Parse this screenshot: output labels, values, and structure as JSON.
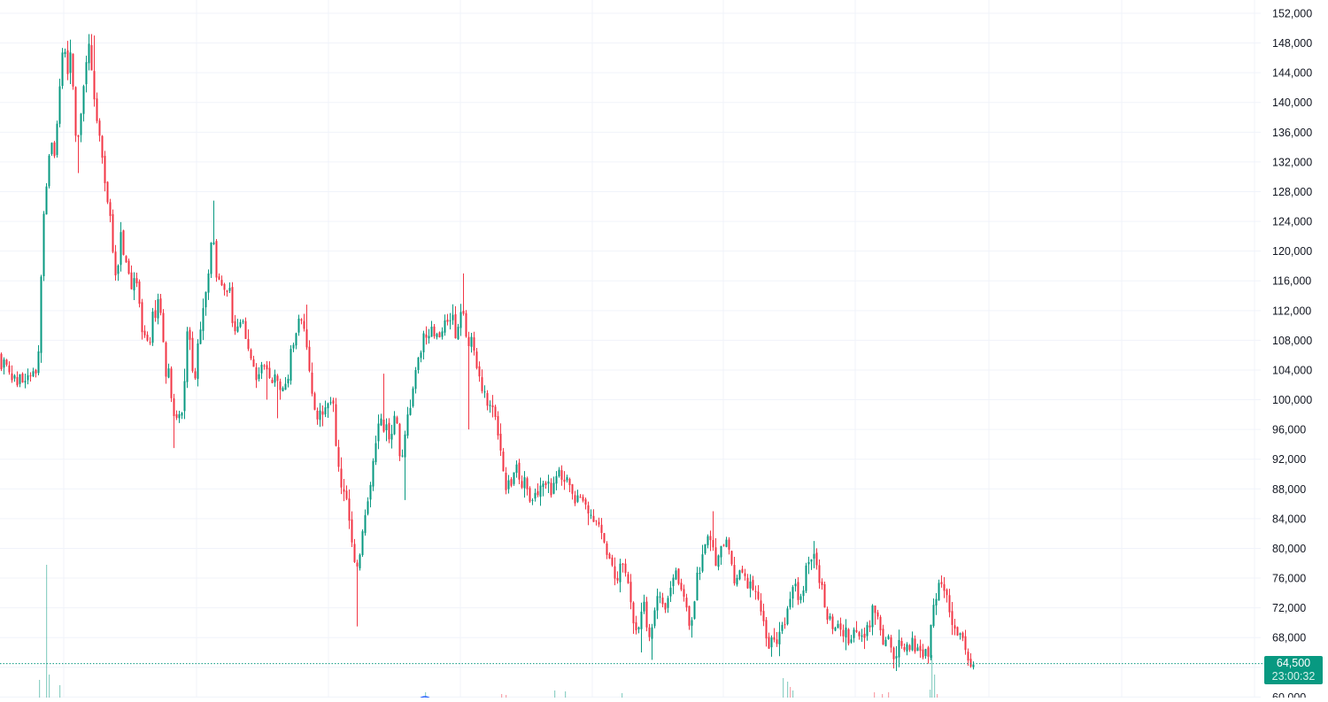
{
  "chart_data": {
    "type": "candlestick",
    "y_axis": {
      "position": "right",
      "ticks": [
        "152,000",
        "148,000",
        "144,000",
        "140,000",
        "136,000",
        "132,000",
        "128,000",
        "124,000",
        "120,000",
        "116,000",
        "112,000",
        "108,000",
        "104,000",
        "100,000",
        "96,000",
        "92,000",
        "88,000",
        "84,000",
        "80,000",
        "76,000",
        "72,000",
        "68,000",
        "64,000",
        "60,000"
      ],
      "ylim": [
        59800,
        153700
      ]
    },
    "grid": true,
    "colors": {
      "up": "#089981",
      "down": "#F23645",
      "grid": "#F0F3FA",
      "axis_text": "#131722"
    },
    "last_price": {
      "value": 64500,
      "label": "64,500",
      "countdown": "23:00:32"
    },
    "path_points": [
      [
        0,
        106000
      ],
      [
        3,
        104500
      ],
      [
        6,
        105200
      ],
      [
        9,
        103800
      ],
      [
        12,
        104400
      ],
      [
        15,
        102600
      ],
      [
        18,
        103600
      ],
      [
        21,
        102200
      ],
      [
        24,
        103100
      ],
      [
        27,
        102500
      ],
      [
        30,
        103400
      ],
      [
        33,
        102400
      ],
      [
        36,
        103200
      ],
      [
        39,
        104100
      ],
      [
        42,
        103400
      ],
      [
        45,
        108200
      ],
      [
        48,
        119500
      ],
      [
        51,
        127000
      ],
      [
        54,
        129000
      ],
      [
        57,
        134000
      ],
      [
        60,
        136000
      ],
      [
        63,
        131500
      ],
      [
        66,
        140500
      ],
      [
        69,
        143500
      ],
      [
        72,
        147500
      ],
      [
        75,
        146000
      ],
      [
        78,
        144000
      ],
      [
        81,
        147000
      ],
      [
        84,
        140000
      ],
      [
        87,
        132000
      ],
      [
        90,
        137000
      ],
      [
        93,
        139500
      ],
      [
        96,
        144000
      ],
      [
        99,
        146500
      ],
      [
        102,
        148500
      ],
      [
        105,
        142500
      ],
      [
        108,
        139500
      ],
      [
        111,
        137000
      ],
      [
        114,
        134000
      ],
      [
        117,
        133000
      ],
      [
        120,
        128500
      ],
      [
        123,
        126500
      ],
      [
        126,
        123000
      ],
      [
        129,
        119500
      ],
      [
        132,
        114500
      ],
      [
        135,
        119500
      ],
      [
        138,
        123500
      ],
      [
        141,
        117000
      ],
      [
        144,
        118500
      ],
      [
        147,
        116000
      ],
      [
        150,
        113500
      ],
      [
        153,
        117000
      ],
      [
        156,
        115000
      ],
      [
        159,
        111000
      ],
      [
        162,
        107500
      ],
      [
        165,
        110500
      ],
      [
        168,
        106000
      ],
      [
        171,
        109000
      ],
      [
        174,
        112000
      ],
      [
        177,
        110500
      ],
      [
        180,
        114000
      ],
      [
        183,
        109500
      ],
      [
        186,
        106000
      ],
      [
        189,
        101500
      ],
      [
        192,
        104500
      ],
      [
        195,
        98500
      ],
      [
        198,
        97000
      ],
      [
        201,
        99000
      ],
      [
        204,
        97500
      ],
      [
        207,
        99500
      ],
      [
        210,
        105000
      ],
      [
        213,
        111500
      ],
      [
        216,
        107500
      ],
      [
        219,
        101500
      ],
      [
        222,
        104500
      ],
      [
        225,
        108000
      ],
      [
        228,
        111000
      ],
      [
        231,
        112500
      ],
      [
        234,
        115000
      ],
      [
        237,
        117000
      ],
      [
        240,
        124000
      ],
      [
        243,
        119000
      ],
      [
        246,
        114500
      ],
      [
        249,
        117000
      ],
      [
        252,
        113500
      ],
      [
        255,
        115000
      ],
      [
        258,
        113000
      ],
      [
        261,
        115500
      ],
      [
        264,
        108500
      ],
      [
        267,
        110000
      ],
      [
        270,
        109000
      ],
      [
        273,
        111500
      ],
      [
        276,
        110000
      ],
      [
        279,
        108500
      ],
      [
        282,
        107000
      ],
      [
        285,
        103500
      ],
      [
        288,
        105000
      ],
      [
        291,
        102000
      ],
      [
        294,
        103500
      ],
      [
        297,
        105500
      ],
      [
        300,
        103800
      ],
      [
        303,
        104500
      ],
      [
        306,
        101200
      ],
      [
        309,
        104000
      ],
      [
        312,
        101800
      ],
      [
        315,
        103000
      ],
      [
        318,
        100500
      ],
      [
        321,
        102000
      ],
      [
        324,
        101200
      ],
      [
        327,
        104500
      ],
      [
        330,
        108000
      ],
      [
        333,
        107000
      ],
      [
        336,
        111000
      ],
      [
        339,
        112000
      ],
      [
        342,
        110500
      ],
      [
        345,
        108000
      ],
      [
        348,
        106000
      ],
      [
        351,
        102000
      ],
      [
        354,
        101000
      ],
      [
        357,
        98000
      ],
      [
        360,
        97000
      ],
      [
        363,
        99000
      ],
      [
        366,
        98000
      ],
      [
        369,
        99500
      ],
      [
        372,
        98500
      ],
      [
        375,
        100500
      ],
      [
        378,
        99500
      ],
      [
        381,
        91500
      ],
      [
        384,
        90000
      ],
      [
        387,
        86500
      ],
      [
        390,
        89000
      ],
      [
        393,
        86500
      ],
      [
        396,
        83500
      ],
      [
        399,
        80500
      ],
      [
        402,
        76500
      ],
      [
        405,
        78000
      ],
      [
        408,
        80500
      ],
      [
        411,
        83000
      ],
      [
        414,
        85500
      ],
      [
        417,
        87500
      ],
      [
        420,
        89000
      ],
      [
        423,
        93000
      ],
      [
        426,
        96000
      ],
      [
        429,
        98500
      ],
      [
        432,
        97500
      ],
      [
        435,
        95000
      ],
      [
        438,
        96500
      ],
      [
        441,
        94500
      ],
      [
        444,
        96500
      ],
      [
        447,
        97500
      ],
      [
        450,
        95500
      ],
      [
        453,
        91000
      ],
      [
        456,
        93500
      ],
      [
        459,
        96000
      ],
      [
        462,
        98500
      ],
      [
        465,
        99500
      ],
      [
        468,
        102000
      ],
      [
        471,
        104000
      ],
      [
        474,
        105500
      ],
      [
        477,
        107500
      ],
      [
        480,
        108500
      ],
      [
        483,
        107000
      ],
      [
        486,
        109000
      ],
      [
        489,
        110000
      ],
      [
        492,
        108000
      ],
      [
        495,
        109500
      ],
      [
        498,
        108500
      ],
      [
        501,
        110500
      ],
      [
        504,
        111000
      ],
      [
        507,
        109500
      ],
      [
        510,
        112000
      ],
      [
        513,
        110000
      ],
      [
        516,
        108000
      ],
      [
        519,
        111000
      ],
      [
        522,
        112500
      ],
      [
        525,
        111500
      ],
      [
        528,
        106500
      ],
      [
        531,
        108500
      ],
      [
        534,
        107500
      ],
      [
        537,
        105500
      ],
      [
        540,
        104000
      ],
      [
        543,
        102000
      ],
      [
        546,
        100500
      ],
      [
        549,
        101500
      ],
      [
        552,
        99000
      ],
      [
        555,
        100500
      ],
      [
        558,
        98500
      ],
      [
        561,
        97000
      ],
      [
        564,
        95500
      ],
      [
        567,
        91500
      ],
      [
        570,
        89000
      ],
      [
        573,
        87500
      ],
      [
        576,
        90000
      ],
      [
        579,
        88500
      ],
      [
        582,
        91000
      ],
      [
        585,
        90500
      ],
      [
        588,
        89500
      ],
      [
        591,
        88000
      ],
      [
        594,
        90500
      ],
      [
        597,
        87500
      ],
      [
        600,
        85500
      ],
      [
        603,
        86500
      ],
      [
        606,
        88500
      ],
      [
        609,
        87000
      ],
      [
        612,
        89000
      ],
      [
        615,
        87500
      ],
      [
        618,
        89500
      ],
      [
        621,
        88000
      ],
      [
        624,
        87000
      ],
      [
        627,
        89500
      ],
      [
        630,
        90500
      ],
      [
        633,
        89500
      ],
      [
        636,
        90000
      ],
      [
        639,
        89000
      ],
      [
        642,
        90500
      ],
      [
        645,
        88500
      ],
      [
        648,
        88000
      ],
      [
        651,
        86000
      ],
      [
        654,
        87500
      ],
      [
        657,
        86500
      ],
      [
        660,
        87000
      ],
      [
        663,
        85500
      ],
      [
        666,
        85000
      ],
      [
        669,
        84500
      ],
      [
        672,
        84000
      ],
      [
        675,
        83500
      ],
      [
        678,
        82000
      ],
      [
        681,
        81000
      ],
      [
        684,
        80000
      ],
      [
        687,
        78500
      ],
      [
        690,
        77500
      ],
      [
        693,
        76500
      ],
      [
        696,
        75500
      ],
      [
        699,
        77000
      ],
      [
        702,
        79500
      ],
      [
        705,
        78000
      ],
      [
        708,
        76500
      ],
      [
        711,
        74500
      ],
      [
        714,
        72000
      ],
      [
        717,
        70000
      ],
      [
        720,
        68000
      ],
      [
        723,
        70500
      ],
      [
        726,
        73000
      ],
      [
        729,
        71500
      ],
      [
        732,
        69000
      ],
      [
        735,
        67500
      ],
      [
        738,
        70500
      ],
      [
        741,
        72500
      ],
      [
        744,
        74000
      ],
      [
        747,
        72500
      ],
      [
        750,
        73500
      ],
      [
        753,
        72000
      ],
      [
        756,
        73500
      ],
      [
        759,
        74500
      ],
      [
        762,
        75500
      ],
      [
        765,
        76500
      ],
      [
        768,
        75500
      ],
      [
        771,
        74500
      ],
      [
        774,
        73000
      ],
      [
        777,
        71500
      ],
      [
        780,
        69500
      ],
      [
        783,
        72000
      ],
      [
        786,
        74500
      ],
      [
        789,
        76500
      ],
      [
        792,
        78000
      ],
      [
        795,
        79500
      ],
      [
        798,
        81000
      ],
      [
        801,
        82500
      ],
      [
        804,
        81000
      ],
      [
        807,
        78500
      ],
      [
        810,
        77000
      ],
      [
        813,
        79000
      ],
      [
        816,
        80500
      ],
      [
        819,
        81500
      ],
      [
        822,
        80000
      ],
      [
        825,
        78500
      ],
      [
        828,
        77000
      ],
      [
        831,
        75500
      ],
      [
        834,
        76500
      ],
      [
        837,
        77500
      ],
      [
        840,
        75500
      ],
      [
        843,
        76500
      ],
      [
        846,
        75000
      ],
      [
        849,
        75500
      ],
      [
        852,
        74500
      ],
      [
        855,
        73500
      ],
      [
        858,
        72000
      ],
      [
        861,
        70500
      ],
      [
        864,
        69500
      ],
      [
        867,
        68000
      ],
      [
        870,
        66500
      ],
      [
        873,
        67500
      ],
      [
        876,
        68500
      ],
      [
        879,
        67000
      ],
      [
        882,
        68500
      ],
      [
        885,
        69500
      ],
      [
        888,
        70500
      ],
      [
        891,
        72000
      ],
      [
        894,
        73500
      ],
      [
        897,
        75500
      ],
      [
        900,
        74000
      ],
      [
        903,
        72500
      ],
      [
        906,
        73500
      ],
      [
        909,
        76000
      ],
      [
        912,
        77500
      ],
      [
        915,
        78500
      ],
      [
        918,
        79500
      ],
      [
        921,
        78000
      ],
      [
        924,
        76500
      ],
      [
        927,
        75000
      ],
      [
        930,
        74500
      ],
      [
        933,
        71000
      ],
      [
        936,
        69000
      ],
      [
        939,
        70500
      ],
      [
        942,
        69500
      ],
      [
        945,
        68000
      ],
      [
        948,
        69500
      ],
      [
        951,
        68500
      ],
      [
        954,
        69000
      ],
      [
        957,
        68500
      ],
      [
        960,
        67500
      ],
      [
        963,
        68500
      ],
      [
        966,
        69000
      ],
      [
        969,
        68500
      ],
      [
        972,
        68000
      ],
      [
        975,
        68500
      ],
      [
        978,
        68000
      ],
      [
        981,
        69500
      ],
      [
        984,
        70500
      ],
      [
        987,
        72000
      ],
      [
        990,
        71500
      ],
      [
        993,
        70000
      ],
      [
        996,
        68000
      ],
      [
        999,
        67000
      ],
      [
        1002,
        68500
      ],
      [
        1005,
        67500
      ],
      [
        1008,
        66000
      ],
      [
        1011,
        65500
      ],
      [
        1014,
        66500
      ],
      [
        1017,
        67500
      ],
      [
        1020,
        66500
      ],
      [
        1023,
        67000
      ],
      [
        1026,
        68000
      ],
      [
        1029,
        66500
      ],
      [
        1032,
        67500
      ],
      [
        1035,
        66000
      ],
      [
        1038,
        67000
      ],
      [
        1041,
        66500
      ],
      [
        1044,
        66000
      ],
      [
        1047,
        66500
      ],
      [
        1050,
        65800
      ],
      [
        1053,
        70500
      ],
      [
        1056,
        73000
      ],
      [
        1059,
        74500
      ],
      [
        1062,
        75000
      ],
      [
        1065,
        74200
      ],
      [
        1068,
        74800
      ],
      [
        1071,
        73000
      ],
      [
        1074,
        71500
      ],
      [
        1077,
        70000
      ],
      [
        1080,
        68500
      ],
      [
        1083,
        68000
      ],
      [
        1086,
        67500
      ],
      [
        1089,
        68000
      ],
      [
        1092,
        66500
      ],
      [
        1095,
        65200
      ],
      [
        1098,
        64800
      ],
      [
        1100,
        64500
      ]
    ],
    "spikes": [
      [
        103,
        149200
      ],
      [
        105,
        149000
      ],
      [
        88,
        130500
      ],
      [
        195,
        93500
      ],
      [
        402,
        69500
      ],
      [
        522,
        117000
      ],
      [
        528,
        96000
      ],
      [
        433,
        103500
      ],
      [
        455,
        86500
      ],
      [
        240,
        126800
      ],
      [
        345,
        112800
      ],
      [
        300,
        100000
      ],
      [
        312,
        97500
      ],
      [
        722,
        66000
      ],
      [
        735,
        65000
      ],
      [
        803,
        85000
      ],
      [
        918,
        81000
      ],
      [
        1010,
        63500
      ],
      [
        1060,
        75800
      ],
      [
        1097,
        63700
      ],
      [
        880,
        65500
      ],
      [
        780,
        68000
      ]
    ],
    "volume_bars": [
      [
        44,
        20,
        false
      ],
      [
        52,
        150,
        false
      ],
      [
        55,
        26,
        false
      ],
      [
        67,
        14,
        false
      ],
      [
        480,
        6,
        false
      ],
      [
        566,
        4,
        true
      ],
      [
        571,
        3,
        true
      ],
      [
        626,
        8,
        false
      ],
      [
        638,
        7,
        false
      ],
      [
        702,
        5,
        false
      ],
      [
        884,
        22,
        false
      ],
      [
        889,
        18,
        false
      ],
      [
        892,
        12,
        true
      ],
      [
        895,
        8,
        false
      ],
      [
        987,
        6,
        true
      ],
      [
        996,
        4,
        true
      ],
      [
        1003,
        6,
        true
      ],
      [
        1050,
        9,
        false
      ],
      [
        1052,
        48,
        false
      ],
      [
        1055,
        26,
        false
      ],
      [
        1058,
        4,
        true
      ]
    ]
  }
}
